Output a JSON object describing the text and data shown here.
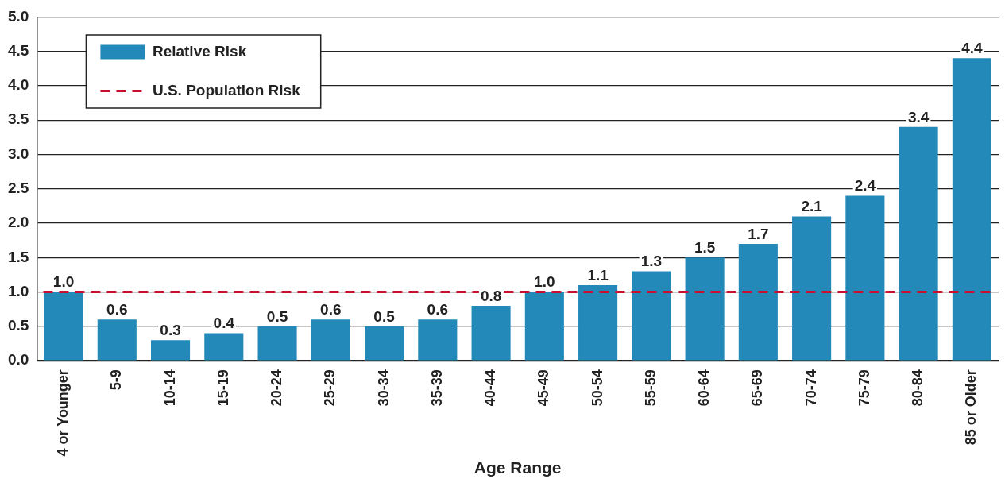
{
  "chart_data": {
    "type": "bar",
    "xlabel": "Age Range",
    "categories": [
      "4 or Younger",
      "5-9",
      "10-14",
      "15-19",
      "20-24",
      "25-29",
      "30-34",
      "35-39",
      "40-44",
      "45-49",
      "50-54",
      "55-59",
      "60-64",
      "65-69",
      "70-74",
      "75-79",
      "80-84",
      "85 or Older"
    ],
    "series": [
      {
        "name": "Relative Risk",
        "color": "#2389b8",
        "values": [
          1.0,
          0.6,
          0.3,
          0.4,
          0.5,
          0.6,
          0.5,
          0.6,
          0.8,
          1.0,
          1.1,
          1.3,
          1.5,
          1.7,
          2.1,
          2.4,
          3.4,
          4.4
        ],
        "value_labels": [
          "1.0",
          "0.6",
          "0.3",
          "0.4",
          "0.5",
          "0.6",
          "0.5",
          "0.6",
          "0.8",
          "1.0",
          "1.1",
          "1.3",
          "1.5",
          "1.7",
          "2.1",
          "2.4",
          "3.4",
          "4.4"
        ]
      }
    ],
    "ylim": [
      0,
      5
    ],
    "yticks": [
      {
        "value": 0,
        "label": "0.0"
      },
      {
        "value": 0.5,
        "label": "0.5"
      },
      {
        "value": 1,
        "label": "1.0"
      },
      {
        "value": 1.5,
        "label": "1.5"
      },
      {
        "value": 2,
        "label": "2.0"
      },
      {
        "value": 2.5,
        "label": "2.5"
      },
      {
        "value": 3,
        "label": "3.0"
      },
      {
        "value": 3.5,
        "label": "3.5"
      },
      {
        "value": 4,
        "label": "4.0"
      },
      {
        "value": 4.5,
        "label": "4.5"
      },
      {
        "value": 5,
        "label": "5.0"
      }
    ],
    "ref_lines": [
      {
        "axis": "y",
        "value": 1,
        "label": "U.S. Population Risk",
        "color": "#c8102e",
        "line_style": "dashed"
      }
    ],
    "grid": "y",
    "legend": "top left"
  }
}
